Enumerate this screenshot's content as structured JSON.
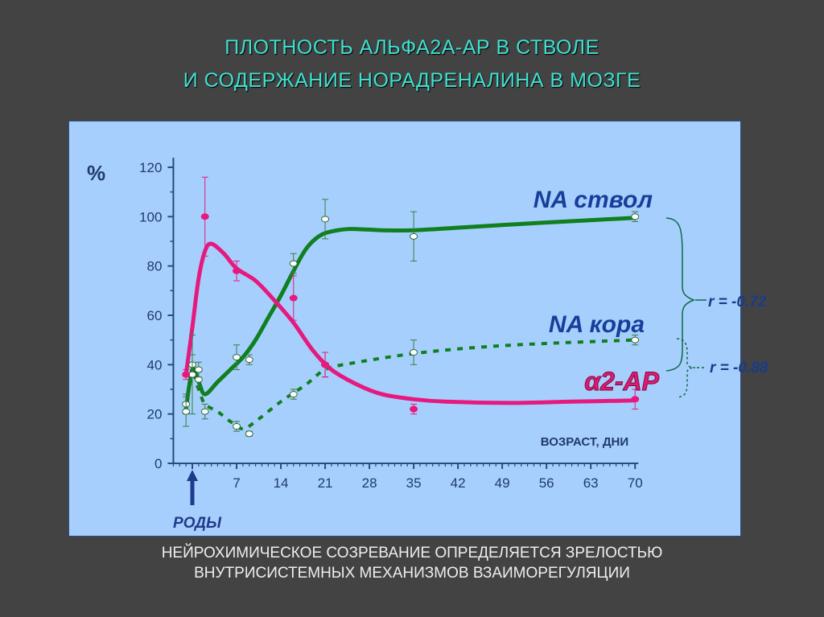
{
  "header": {
    "line1": "ПЛОТНОСТЬ АЛЬФА2А-АР В СТВОЛЕ",
    "line2": "И СОДЕРЖАНИЕ НОРАДРЕНАЛИНА В МОЗГЕ"
  },
  "footer": {
    "line1": "НЕЙРОХИМИЧЕСКОЕ СОЗРЕВАНИЕ ОПРЕДЕЛЯЕТСЯ ЗРЕЛОСТЬЮ",
    "line2": "ВНУТРИСИСТЕМНЫХ МЕХАНИЗМОВ ВЗАИМОРЕГУЛЯЦИИ"
  },
  "chart_data": {
    "type": "line",
    "title": "",
    "ylabel": "%",
    "xlabel": "ВОЗРАСТ, ДНИ",
    "xlim": [
      -3,
      70
    ],
    "ylim": [
      0,
      120
    ],
    "x_ticks": [
      0,
      7,
      14,
      21,
      28,
      35,
      42,
      49,
      56,
      63,
      70
    ],
    "x_tick_labels": [
      "",
      "7",
      "14",
      "21",
      "28",
      "35",
      "42",
      "49",
      "56",
      "63",
      "70"
    ],
    "y_ticks": [
      0,
      20,
      40,
      60,
      80,
      100,
      120
    ],
    "y_tick_labels": [
      "0",
      "20",
      "40",
      "60",
      "80",
      "100",
      "120"
    ],
    "birth_marker": {
      "x": 0,
      "label": "РОДЫ"
    },
    "grid": false,
    "series": [
      {
        "name": "NA ствол",
        "color": "#0f7f1f",
        "dash": false,
        "marker_fill": "#ffffff",
        "curve": [
          [
            -1,
            22
          ],
          [
            0,
            38
          ],
          [
            1,
            33
          ],
          [
            2,
            28
          ],
          [
            4,
            33
          ],
          [
            6,
            38
          ],
          [
            8,
            43
          ],
          [
            10,
            50
          ],
          [
            12,
            59
          ],
          [
            14,
            68
          ],
          [
            16,
            78
          ],
          [
            18,
            87
          ],
          [
            20,
            92
          ],
          [
            22,
            94
          ],
          [
            25,
            95
          ],
          [
            30,
            94.5
          ],
          [
            35,
            94.5
          ],
          [
            45,
            96
          ],
          [
            55,
            97.5
          ],
          [
            70,
            99.5
          ]
        ],
        "points": [
          {
            "x": -1,
            "y": 24,
            "err": 4
          },
          {
            "x": 0,
            "y": 40,
            "err": 4
          },
          {
            "x": 1,
            "y": 34,
            "err": 3
          },
          {
            "x": 7,
            "y": 43,
            "err": 5
          },
          {
            "x": 9,
            "y": 42,
            "err": 2
          },
          {
            "x": 16,
            "y": 81,
            "err": 4
          },
          {
            "x": 21,
            "y": 99,
            "err": 8
          },
          {
            "x": 35,
            "y": 92,
            "err": 10
          },
          {
            "x": 70,
            "y": 100,
            "err": 2
          }
        ]
      },
      {
        "name": "NA кора",
        "color": "#0f7f1f",
        "dash": true,
        "marker_fill": "#ffffff",
        "curve": [
          [
            -1,
            22
          ],
          [
            0,
            36
          ],
          [
            1,
            30
          ],
          [
            2,
            24
          ],
          [
            4,
            21
          ],
          [
            6,
            17
          ],
          [
            8,
            14
          ],
          [
            10,
            17
          ],
          [
            14,
            25
          ],
          [
            18,
            32
          ],
          [
            21,
            38
          ],
          [
            25,
            40.5
          ],
          [
            35,
            44.5
          ],
          [
            45,
            47
          ],
          [
            55,
            48.5
          ],
          [
            70,
            50
          ]
        ],
        "points": [
          {
            "x": -1,
            "y": 21,
            "err": 6
          },
          {
            "x": 0,
            "y": 36,
            "err": 16
          },
          {
            "x": 1,
            "y": 38,
            "err": 3
          },
          {
            "x": 2,
            "y": 21,
            "err": 3
          },
          {
            "x": 7,
            "y": 15,
            "err": 2
          },
          {
            "x": 9,
            "y": 12,
            "err": 1
          },
          {
            "x": 16,
            "y": 28,
            "err": 2
          },
          {
            "x": 21,
            "y": 40,
            "err": 5
          },
          {
            "x": 35,
            "y": 45,
            "err": 5
          },
          {
            "x": 70,
            "y": 50,
            "err": 2
          }
        ]
      },
      {
        "name": "α2-АР",
        "color": "#e6197e",
        "dash": false,
        "marker_fill": "#e6197e",
        "curve": [
          [
            -1,
            36
          ],
          [
            0,
            55
          ],
          [
            1,
            75
          ],
          [
            2,
            86
          ],
          [
            3,
            89
          ],
          [
            5,
            85
          ],
          [
            7,
            79
          ],
          [
            10,
            74
          ],
          [
            13,
            66
          ],
          [
            16,
            57
          ],
          [
            19,
            46
          ],
          [
            22,
            38
          ],
          [
            26,
            32
          ],
          [
            30,
            28
          ],
          [
            35,
            26
          ],
          [
            40,
            25
          ],
          [
            50,
            24.5
          ],
          [
            60,
            25
          ],
          [
            70,
            25.5
          ]
        ],
        "points": [
          {
            "x": -1,
            "y": 36,
            "err": 2
          },
          {
            "x": 2,
            "y": 100,
            "err": 16
          },
          {
            "x": 7,
            "y": 78,
            "err": 4
          },
          {
            "x": 16,
            "y": 67,
            "err": 9
          },
          {
            "x": 21,
            "y": 40,
            "err": 5
          },
          {
            "x": 35,
            "y": 22,
            "err": 2
          },
          {
            "x": 70,
            "y": 26,
            "err": 4
          }
        ]
      }
    ],
    "correlations": [
      {
        "label": "r = -0.72",
        "between": [
          "α2-АР",
          "NA ствол"
        ]
      },
      {
        "label": "r = -0.88",
        "between": [
          "α2-АР",
          "NA кора"
        ]
      }
    ]
  }
}
